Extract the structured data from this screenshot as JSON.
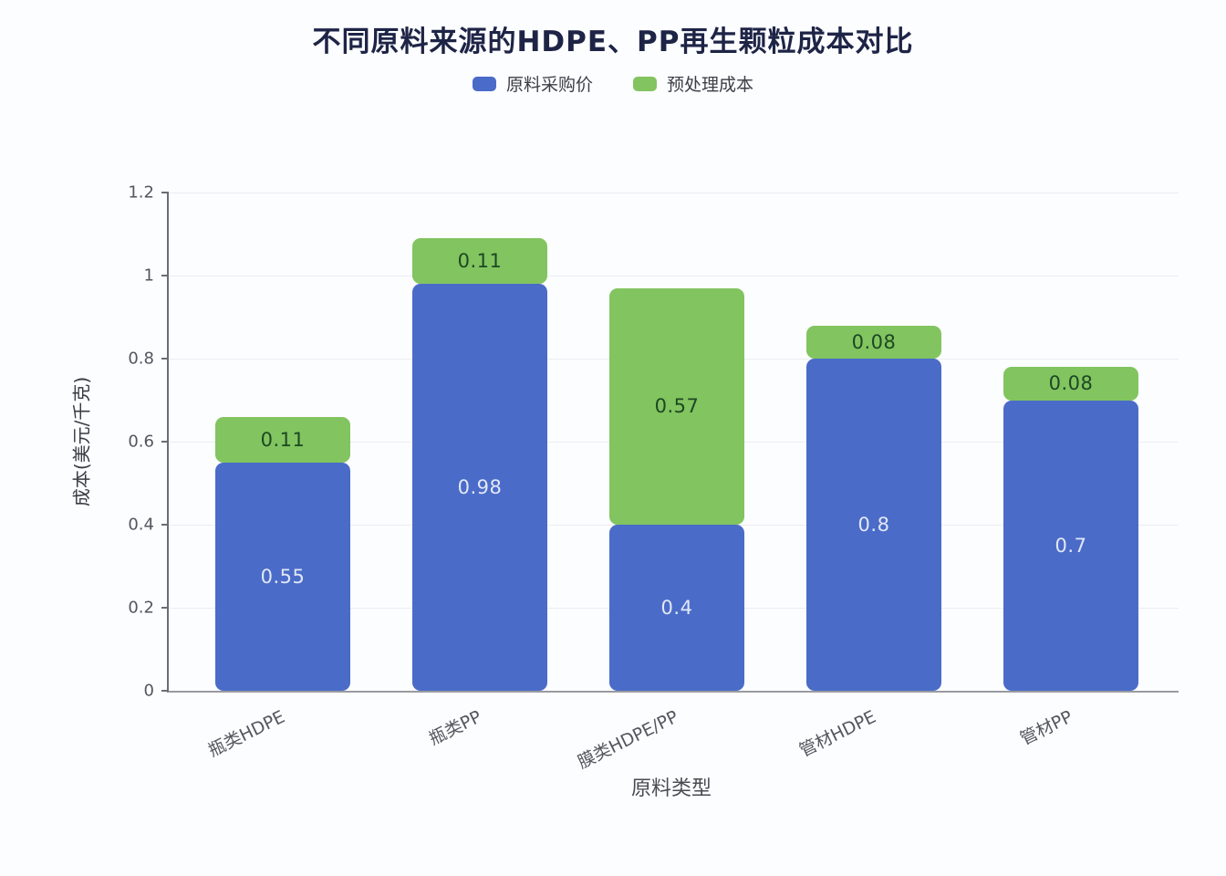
{
  "page": {
    "title": "不同原料来源的HDPE、PP再生颗粒成本对比"
  },
  "legend": {
    "position": "top",
    "items": [
      {
        "label": "原料采购价",
        "color": "#4a6cc8"
      },
      {
        "label": "预处理成本",
        "color": "#82c45f"
      }
    ]
  },
  "axes": {
    "x_title": "原料类型",
    "y_title": "成本(美元/千克)"
  },
  "chart_data": {
    "type": "bar",
    "stacked": true,
    "title": "不同原料来源的HDPE、PP再生颗粒成本对比",
    "xlabel": "原料类型",
    "ylabel": "成本(美元/千克)",
    "categories": [
      "瓶类HDPE",
      "瓶类PP",
      "膜类HDPE/PP",
      "管材HDPE",
      "管材PP"
    ],
    "series": [
      {
        "name": "原料采购价",
        "color": "#4a6cc8",
        "label_color": "#e3e7f7",
        "values": [
          0.55,
          0.98,
          0.4,
          0.8,
          0.7
        ]
      },
      {
        "name": "预处理成本",
        "color": "#82c45f",
        "label_color": "#1d4824",
        "values": [
          0.11,
          0.11,
          0.57,
          0.08,
          0.08
        ]
      }
    ],
    "ylim": [
      0,
      1.2
    ],
    "yticks": [
      0,
      0.2,
      0.4,
      0.6,
      0.8,
      1,
      1.2
    ],
    "ytick_labels": [
      "0",
      "0.2",
      "0.4",
      "0.6",
      "0.8",
      "1",
      "1.2"
    ],
    "grid": true,
    "legend_position": "top",
    "value_labels": "inside-center"
  }
}
